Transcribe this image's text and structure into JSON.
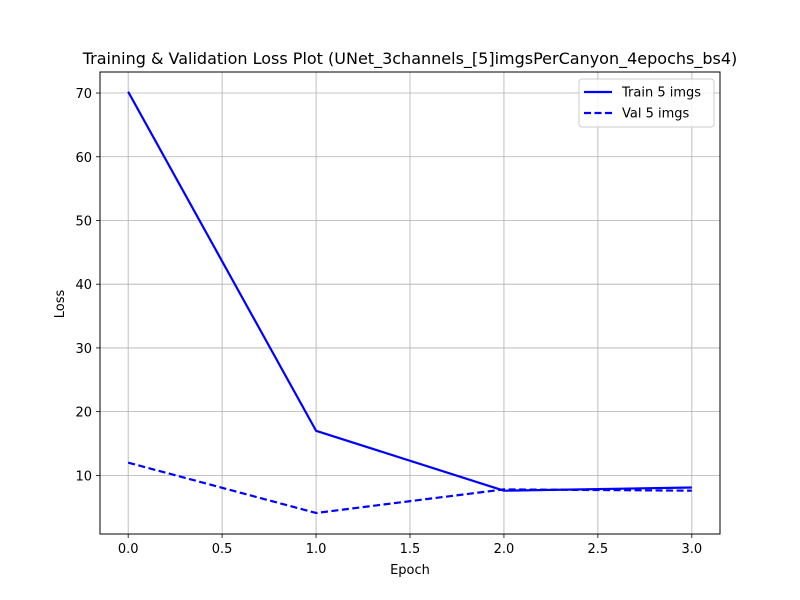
{
  "chart_data": {
    "type": "line",
    "title": "Training & Validation Loss Plot (UNet_3channels_[5]imgsPerCanyon_4epochs_bs4)",
    "xlabel": "Epoch",
    "ylabel": "Loss",
    "x": [
      0,
      1,
      2,
      3
    ],
    "xlim": [
      -0.15,
      3.15
    ],
    "ylim": [
      0.8,
      73.3
    ],
    "xticks": [
      0.0,
      0.5,
      1.0,
      1.5,
      2.0,
      2.5,
      3.0
    ],
    "xtick_labels": [
      "0.0",
      "0.5",
      "1.0",
      "1.5",
      "2.0",
      "2.5",
      "3.0"
    ],
    "yticks": [
      10,
      20,
      30,
      40,
      50,
      60,
      70
    ],
    "ytick_labels": [
      "10",
      "20",
      "30",
      "40",
      "50",
      "60",
      "70"
    ],
    "grid": true,
    "legend_position": "top-right",
    "series": [
      {
        "name": "Train 5 imgs",
        "values": [
          70.2,
          17.0,
          7.6,
          8.1
        ],
        "color": "#0000ff",
        "style": "solid"
      },
      {
        "name": "Val 5 imgs",
        "values": [
          12.0,
          4.1,
          7.8,
          7.6
        ],
        "color": "#0000ff",
        "style": "dashed"
      }
    ]
  }
}
